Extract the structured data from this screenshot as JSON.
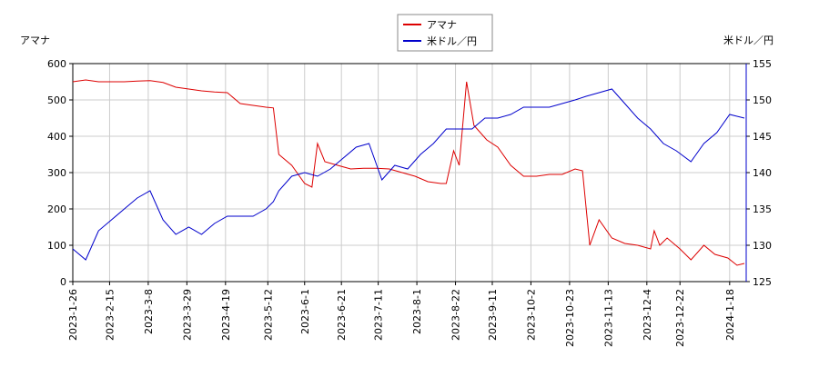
{
  "chart_data": {
    "type": "line",
    "y_label": "アマナ",
    "y2_label": "米ドル／円",
    "xlim": [
      "2023-1-26",
      "2024-1-27"
    ],
    "xticks": [
      "2023-1-26",
      "2023-2-15",
      "2023-3-8",
      "2023-3-29",
      "2023-4-19",
      "2023-5-12",
      "2023-6-1",
      "2023-6-21",
      "2023-7-11",
      "2023-8-1",
      "2023-8-22",
      "2023-9-11",
      "2023-10-2",
      "2023-10-23",
      "2023-11-13",
      "2023-12-4",
      "2023-12-22",
      "2024-1-18"
    ],
    "ylim": [
      0,
      600
    ],
    "yticks": [
      0,
      100,
      200,
      300,
      400,
      500,
      600
    ],
    "y2lim": [
      125,
      155
    ],
    "y2ticks": [
      125,
      130,
      135,
      140,
      145,
      150,
      155
    ],
    "grid": true,
    "legend": "top-center",
    "series": [
      {
        "name": "アマナ",
        "color": "#dd0000",
        "x": [
          "2023-1-26",
          "2023-2-2",
          "2023-2-9",
          "2023-2-16",
          "2023-2-23",
          "2023-3-2",
          "2023-3-9",
          "2023-3-16",
          "2023-3-23",
          "2023-3-30",
          "2023-4-6",
          "2023-4-13",
          "2023-4-20",
          "2023-4-27",
          "2023-5-4",
          "2023-5-11",
          "2023-5-15",
          "2023-5-18",
          "2023-5-25",
          "2023-6-1",
          "2023-6-5",
          "2023-6-8",
          "2023-6-12",
          "2023-6-19",
          "2023-6-26",
          "2023-7-3",
          "2023-7-10",
          "2023-7-17",
          "2023-7-24",
          "2023-7-31",
          "2023-8-7",
          "2023-8-14",
          "2023-8-17",
          "2023-8-21",
          "2023-8-24",
          "2023-8-28",
          "2023-9-1",
          "2023-9-8",
          "2023-9-14",
          "2023-9-21",
          "2023-9-28",
          "2023-10-5",
          "2023-10-12",
          "2023-10-19",
          "2023-10-26",
          "2023-10-30",
          "2023-11-3",
          "2023-11-8",
          "2023-11-15",
          "2023-11-22",
          "2023-11-29",
          "2023-12-6",
          "2023-12-8",
          "2023-12-11",
          "2023-12-15",
          "2023-12-22",
          "2023-12-28",
          "2024-1-4",
          "2024-1-10",
          "2024-1-17",
          "2024-1-22",
          "2024-1-26"
        ],
        "values": [
          550,
          555,
          550,
          550,
          550,
          552,
          553,
          548,
          535,
          530,
          525,
          522,
          520,
          490,
          485,
          480,
          478,
          350,
          320,
          270,
          260,
          380,
          330,
          320,
          310,
          312,
          312,
          310,
          300,
          290,
          275,
          270,
          270,
          360,
          320,
          550,
          430,
          390,
          370,
          320,
          290,
          290,
          295,
          295,
          310,
          305,
          100,
          170,
          120,
          105,
          100,
          90,
          140,
          100,
          120,
          90,
          60,
          100,
          75,
          65,
          45,
          50
        ]
      },
      {
        "name": "米ドル／円",
        "color": "#0000cc",
        "axis": "y2",
        "x": [
          "2023-1-26",
          "2023-2-2",
          "2023-2-9",
          "2023-2-16",
          "2023-2-23",
          "2023-3-2",
          "2023-3-9",
          "2023-3-16",
          "2023-3-23",
          "2023-3-30",
          "2023-4-6",
          "2023-4-13",
          "2023-4-20",
          "2023-4-27",
          "2023-5-4",
          "2023-5-11",
          "2023-5-15",
          "2023-5-18",
          "2023-5-25",
          "2023-6-1",
          "2023-6-8",
          "2023-6-15",
          "2023-6-22",
          "2023-6-29",
          "2023-7-6",
          "2023-7-13",
          "2023-7-20",
          "2023-7-27",
          "2023-8-3",
          "2023-8-10",
          "2023-8-17",
          "2023-8-24",
          "2023-8-31",
          "2023-9-7",
          "2023-9-14",
          "2023-9-21",
          "2023-9-28",
          "2023-10-5",
          "2023-10-12",
          "2023-10-19",
          "2023-10-26",
          "2023-11-1",
          "2023-11-8",
          "2023-11-15",
          "2023-11-22",
          "2023-11-29",
          "2023-12-6",
          "2023-12-13",
          "2023-12-20",
          "2023-12-28",
          "2024-1-4",
          "2024-1-11",
          "2024-1-18",
          "2024-1-26"
        ],
        "values": [
          129.5,
          128,
          132,
          133.5,
          135,
          136.5,
          137.5,
          133.5,
          131.5,
          132.5,
          131.5,
          133,
          134,
          134,
          134,
          135,
          136,
          137.5,
          139.5,
          140,
          139.5,
          140.5,
          142,
          143.5,
          144,
          139,
          141,
          140.5,
          142.5,
          144,
          146,
          146,
          146,
          147.5,
          147.5,
          148,
          149,
          149,
          149,
          149.5,
          150,
          150.5,
          151,
          151.5,
          149.5,
          147.5,
          146,
          144,
          143,
          141.5,
          144,
          145.5,
          148,
          147.5
        ]
      }
    ]
  }
}
